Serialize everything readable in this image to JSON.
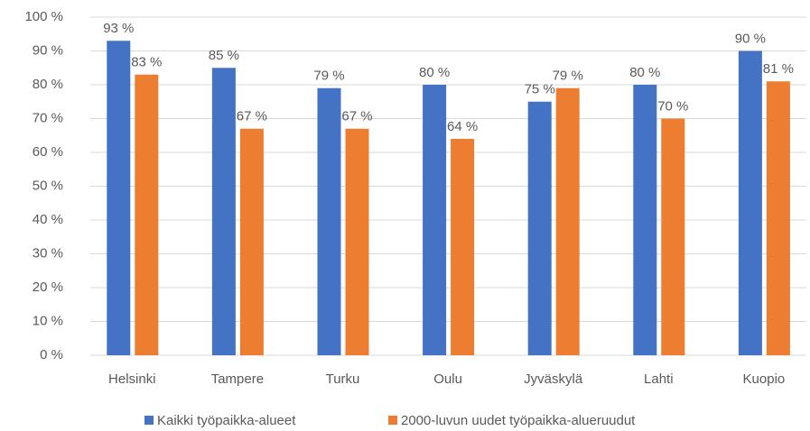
{
  "chart_data": {
    "type": "bar",
    "categories": [
      "Helsinki",
      "Tampere",
      "Turku",
      "Oulu",
      "Jyväskylä",
      "Lahti",
      "Kuopio"
    ],
    "series": [
      {
        "name": "Kaikki työpaikka-alueet",
        "color": "#4472c4",
        "values": [
          93,
          85,
          79,
          80,
          75,
          80,
          90
        ],
        "value_labels": [
          "93 %",
          "85 %",
          "79 %",
          "80 %",
          "75 %",
          "80 %",
          "90 %"
        ]
      },
      {
        "name": "2000-luvun uudet työpaikka-alueruudut",
        "color": "#ed7d31",
        "values": [
          83,
          67,
          67,
          64,
          79,
          70,
          81
        ],
        "value_labels": [
          "83 %",
          "67 %",
          "67 %",
          "64 %",
          "79 %",
          "70 %",
          "81 %"
        ]
      }
    ],
    "ylim": [
      0,
      100
    ],
    "yticks": [
      {
        "value": 0,
        "label": "0 %"
      },
      {
        "value": 10,
        "label": "10 %"
      },
      {
        "value": 20,
        "label": "20 %"
      },
      {
        "value": 30,
        "label": "30 %"
      },
      {
        "value": 40,
        "label": "40 %"
      },
      {
        "value": 50,
        "label": "50 %"
      },
      {
        "value": 60,
        "label": "60 %"
      },
      {
        "value": 70,
        "label": "70 %"
      },
      {
        "value": 80,
        "label": "80 %"
      },
      {
        "value": 90,
        "label": "90 %"
      },
      {
        "value": 100,
        "label": "100 %"
      }
    ],
    "grid": true,
    "legend": "bottom"
  }
}
